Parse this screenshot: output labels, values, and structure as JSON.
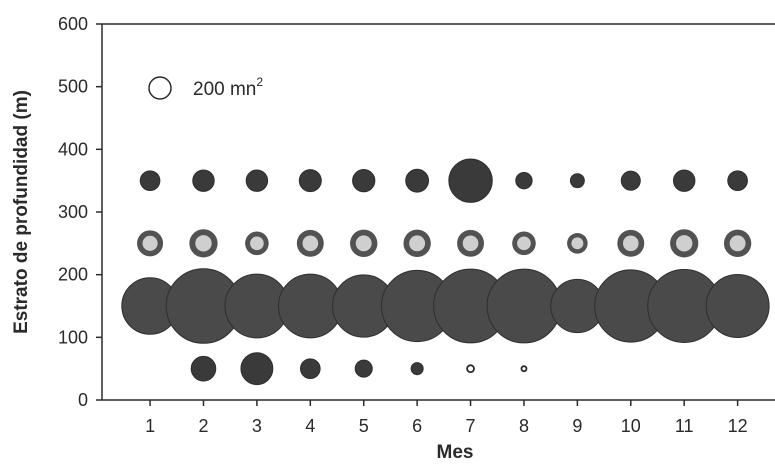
{
  "chart_data": {
    "type": "scatter",
    "subtype": "bubble",
    "xlabel": "Mes",
    "ylabel": "Estrato de profundidad (m)",
    "xlim": [
      0.1,
      12.7
    ],
    "ylim": [
      0,
      600
    ],
    "x_ticks": [
      1,
      2,
      3,
      4,
      5,
      6,
      7,
      8,
      9,
      10,
      11,
      12
    ],
    "y_ticks": [
      0,
      100,
      200,
      300,
      400,
      500,
      600
    ],
    "grid": false,
    "legend": {
      "placement": "top-left",
      "label": "200 mn",
      "superscript": "2",
      "size_value": 200
    },
    "colors": {
      "stratum_350": "#3a3a3a",
      "stratum_250_ring": "#525252",
      "stratum_250_core": "#cfcfcf",
      "stratum_150": "#4a4a4a",
      "stratum_50": "#3a3a3a",
      "open_marker": "#2a2a2a"
    },
    "series": [
      {
        "depth": 350,
        "style": "solid",
        "x": [
          1,
          2,
          3,
          4,
          5,
          6,
          7,
          8,
          9,
          10,
          11,
          12
        ],
        "sizes": [
          160,
          190,
          190,
          200,
          205,
          215,
          780,
          110,
          80,
          150,
          190,
          160
        ]
      },
      {
        "depth": 250,
        "style": "ring",
        "x": [
          1,
          2,
          3,
          4,
          5,
          6,
          7,
          8,
          9,
          10,
          11,
          12
        ],
        "sizes": [
          280,
          330,
          230,
          300,
          310,
          310,
          300,
          230,
          175,
          300,
          330,
          310
        ]
      },
      {
        "depth": 150,
        "style": "solid",
        "x": [
          1,
          2,
          3,
          4,
          5,
          6,
          7,
          8,
          9,
          10,
          11,
          12
        ],
        "sizes": [
          1320,
          2300,
          1680,
          1680,
          1600,
          2100,
          2250,
          2250,
          1170,
          2150,
          2200,
          1640
        ]
      },
      {
        "depth": 50,
        "style": "solid",
        "x": [
          2,
          3,
          4,
          5,
          6
        ],
        "sizes": [
          250,
          420,
          160,
          120,
          60
        ]
      },
      {
        "depth": 50,
        "style": "open",
        "x": [
          7,
          8
        ],
        "sizes": [
          20,
          9
        ]
      }
    ]
  }
}
